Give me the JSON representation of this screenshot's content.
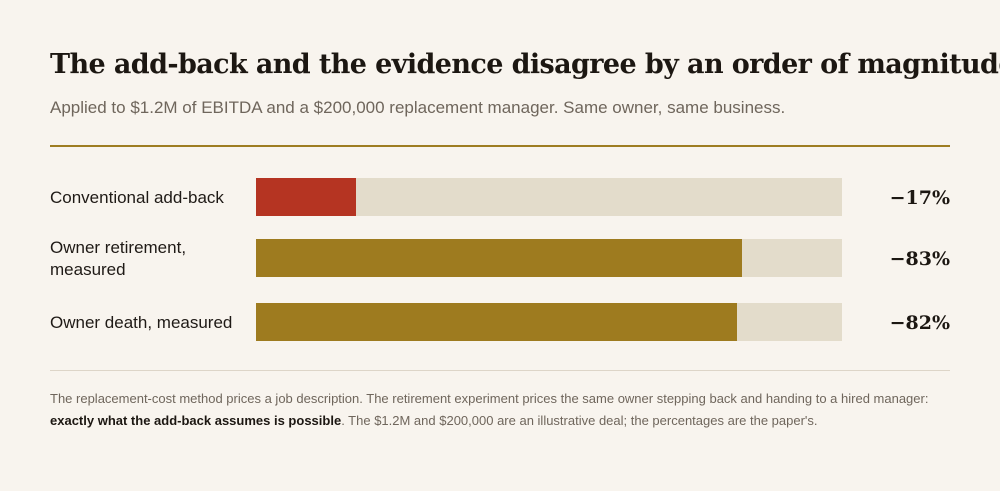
{
  "header": {
    "title": "The add-back and the evidence disagree by an order of magnitude",
    "subtitle": "Applied to $1.2M of EBITDA and a $200,000 replacement manager. Same owner, same business."
  },
  "chart_data": {
    "type": "bar",
    "orientation": "horizontal",
    "categories": [
      "Conventional add-back",
      "Owner retirement, measured",
      "Owner death, measured"
    ],
    "values": [
      -17,
      -83,
      -82
    ],
    "value_labels": [
      "−17%",
      "−83%",
      "−82%"
    ],
    "xlim": [
      0,
      -100
    ],
    "grid": false,
    "colors": [
      "#b53422",
      "#9e7b1f",
      "#9e7b1f"
    ],
    "track_color": "#e3dccb"
  },
  "footnote": {
    "part1": "The replacement-cost method prices a job description. The retirement experiment prices the same owner stepping back and handing to a hired manager: ",
    "emphasis": "exactly what the add-back assumes is possible",
    "part2": ". The $1.2M and $200,000 are an illustrative deal; the percentages are the paper's."
  }
}
